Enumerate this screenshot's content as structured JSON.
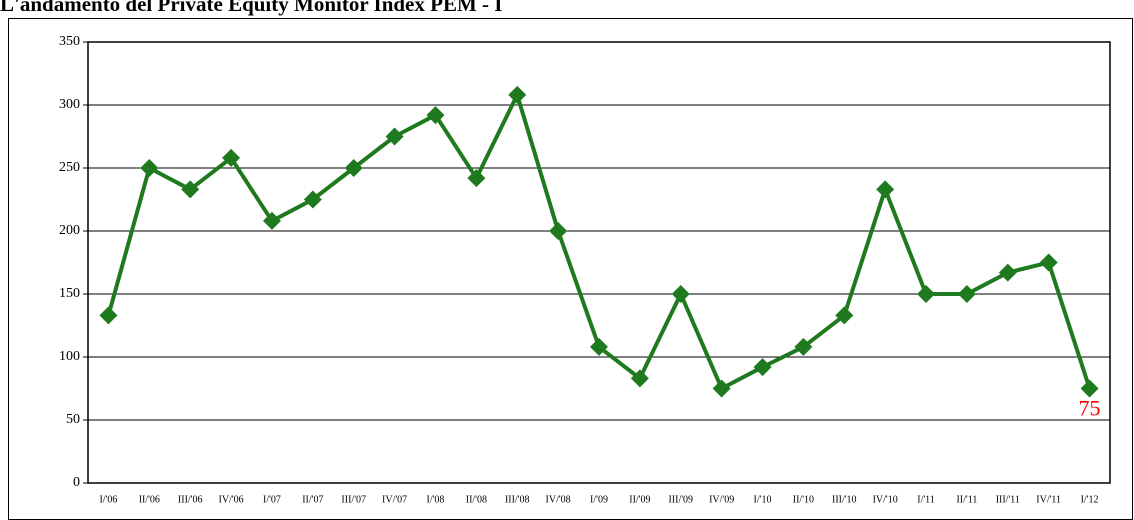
{
  "chart_data": {
    "type": "line",
    "title": "L'andamento del Private Equity Monitor Index PEM - I",
    "categories": [
      "I/'06",
      "II/'06",
      "III/'06",
      "IV/'06",
      "I/'07",
      "II/'07",
      "III/'07",
      "IV/'07",
      "I/'08",
      "II/'08",
      "III/'08",
      "IV/'08",
      "I/'09",
      "II/'09",
      "III/'09",
      "IV/'09",
      "I/'10",
      "II/'10",
      "III/'10",
      "IV/'10",
      "I/'11",
      "II/'11",
      "III/'11",
      "IV/'11",
      "I/'12"
    ],
    "series": [
      {
        "name": "PEM",
        "color": "#1f7a1f",
        "values": [
          133,
          250,
          233,
          258,
          208,
          225,
          250,
          275,
          292,
          242,
          308,
          200,
          108,
          83,
          150,
          75,
          92,
          108,
          133,
          233,
          150,
          150,
          167,
          175,
          75
        ]
      }
    ],
    "labeled_index": 24,
    "label_color": "#ff0000",
    "ylim": [
      0,
      350
    ],
    "yticks": [
      0,
      50,
      100,
      150,
      200,
      250,
      300,
      350
    ],
    "grid": true
  }
}
